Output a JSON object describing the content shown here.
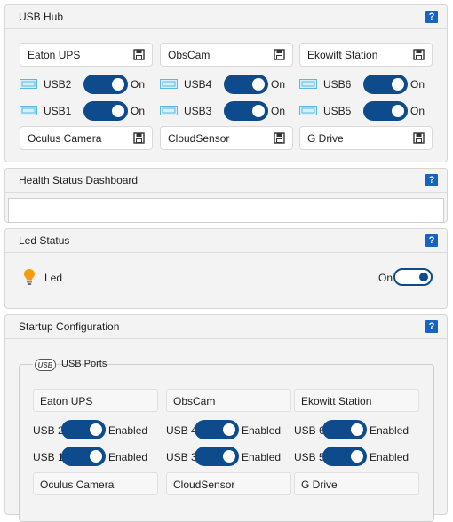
{
  "usb_hub": {
    "title": "USB Hub",
    "help": "?",
    "top_names": [
      "Eaton UPS",
      "ObsCam",
      "Ekowitt Station"
    ],
    "bottom_names": [
      "Oculus Camera",
      "CloudSensor",
      "G Drive"
    ],
    "ports_row1": [
      {
        "label": "USB2",
        "state": "On"
      },
      {
        "label": "USB4",
        "state": "On"
      },
      {
        "label": "USB6",
        "state": "On"
      }
    ],
    "ports_row2": [
      {
        "label": "USB1",
        "state": "On"
      },
      {
        "label": "USB3",
        "state": "On"
      },
      {
        "label": "USB5",
        "state": "On"
      }
    ]
  },
  "health": {
    "title": "Health Status Dashboard",
    "help": "?",
    "value": ""
  },
  "led_status": {
    "title": "Led Status",
    "help": "?",
    "label": "Led",
    "state": "On"
  },
  "startup": {
    "title": "Startup Configuration",
    "help": "?",
    "legend": "USB Ports",
    "legend_logo": "USB",
    "top_names": [
      "Eaton UPS",
      "ObsCam",
      "Ekowitt Station"
    ],
    "bottom_names": [
      "Oculus Camera",
      "CloudSensor",
      "G Drive"
    ],
    "row1": [
      {
        "label": "USB 2",
        "state": "Enabled"
      },
      {
        "label": "USB 4",
        "state": "Enabled"
      },
      {
        "label": "USB 6",
        "state": "Enabled"
      }
    ],
    "row2": [
      {
        "label": "USB 1",
        "state": "Enabled"
      },
      {
        "label": "USB 3",
        "state": "Enabled"
      },
      {
        "label": "USB 5",
        "state": "Enabled"
      }
    ]
  },
  "colors": {
    "accent": "#0d4b8d",
    "help_icon": "#1565c0",
    "bulb": "#f39c12",
    "usb_icon": "#5bb8e0"
  },
  "icons": {
    "help": "question-icon",
    "save": "floppy-save-icon",
    "usb_port": "usb-port-icon",
    "bulb": "light-bulb-icon"
  }
}
